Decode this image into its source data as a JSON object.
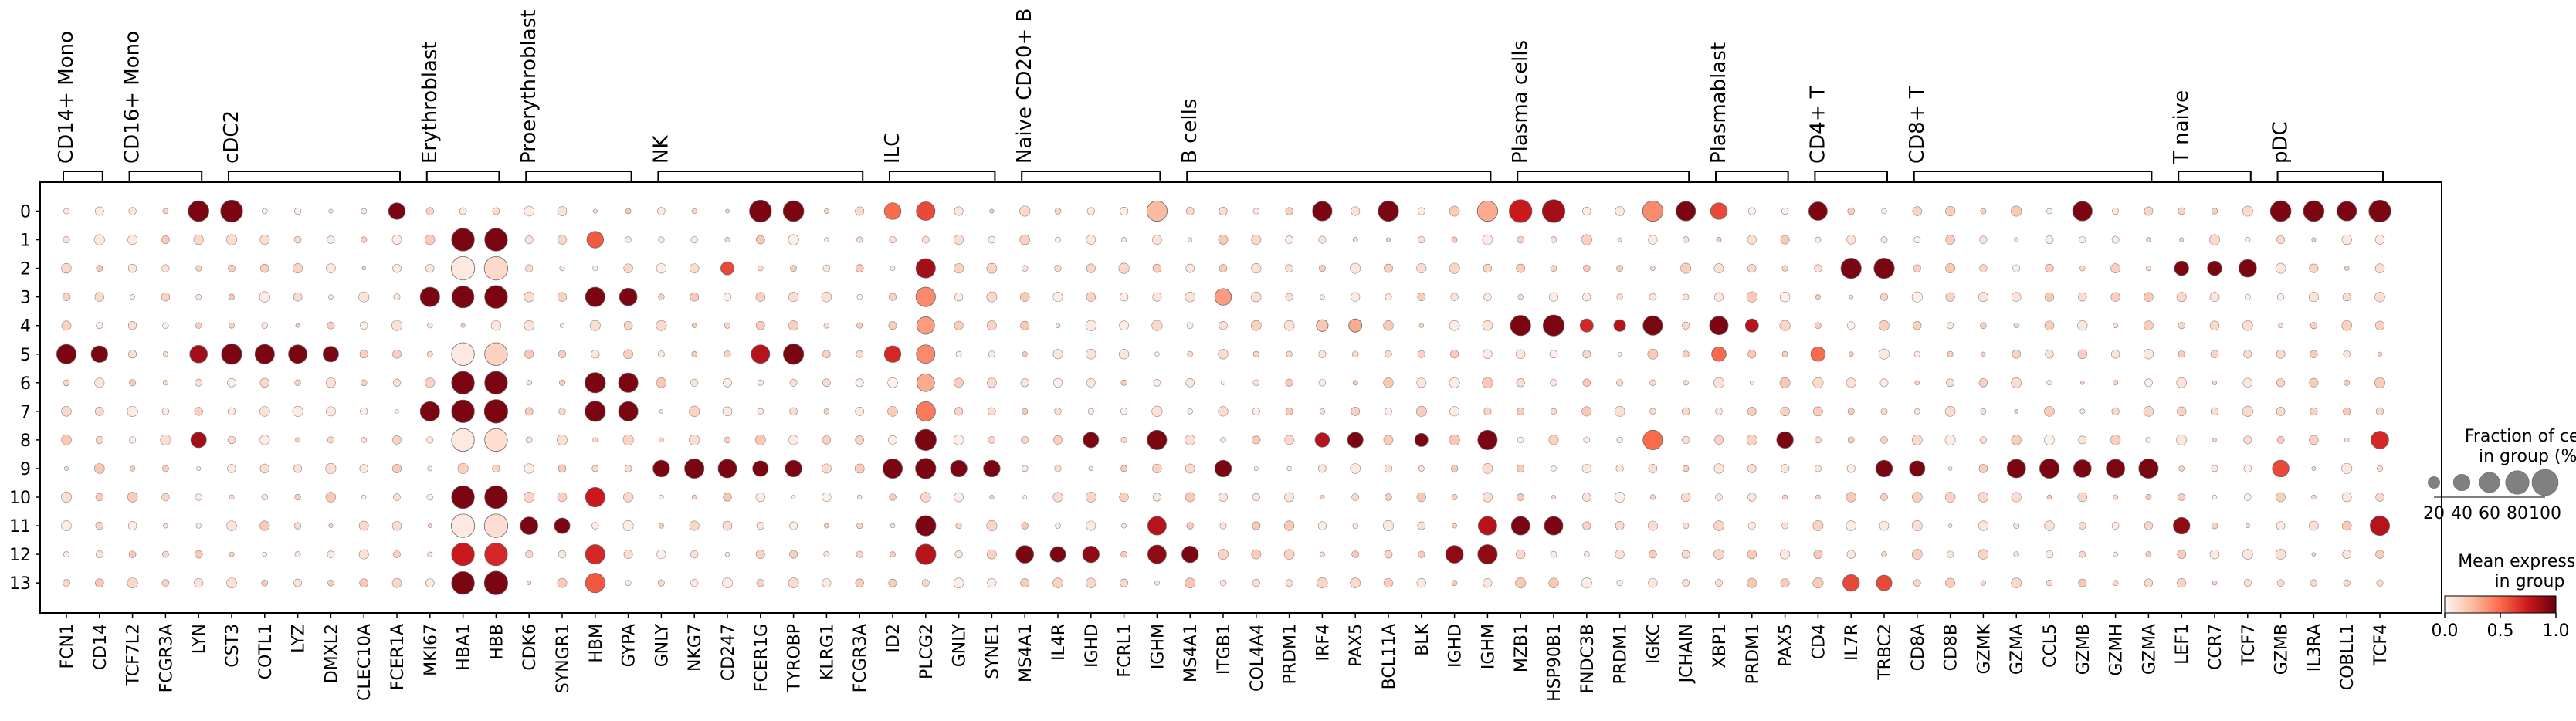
{
  "chart_data": {
    "type": "dotplot",
    "rows": [
      "0",
      "1",
      "2",
      "3",
      "4",
      "5",
      "6",
      "7",
      "8",
      "9",
      "10",
      "11",
      "12",
      "13"
    ],
    "genes": [
      "FCN1",
      "CD14",
      "TCF7L2",
      "FCGR3A",
      "LYN",
      "CST3",
      "COTL1",
      "LYZ",
      "DMXL2",
      "CLEC10A",
      "FCER1A",
      "MKI67",
      "HBA1",
      "HBB",
      "CDK6",
      "SYNGR1",
      "HBM",
      "GYPA",
      "GNLY",
      "NKG7",
      "CD247",
      "FCER1G",
      "TYROBP",
      "KLRG1",
      "FCGR3A",
      "ID2",
      "PLCG2",
      "GNLY",
      "SYNE1",
      "MS4A1",
      "IL4R",
      "IGHD",
      "FCRL1",
      "IGHM",
      "MS4A1",
      "ITGB1",
      "COL4A4",
      "PRDM1",
      "IRF4",
      "PAX5",
      "BCL11A",
      "BLK",
      "IGHD",
      "IGHM",
      "MZB1",
      "HSP90B1",
      "FNDC3B",
      "PRDM1",
      "IGKC",
      "JCHAIN",
      "XBP1",
      "PRDM1",
      "PAX5",
      "CD4",
      "IL7R",
      "TRBC2",
      "CD8A",
      "CD8B",
      "GZMK",
      "GZMA",
      "CCL5",
      "GZMB",
      "GZMH",
      "GZMA",
      "LEF1",
      "CCR7",
      "TCF7",
      "GZMB",
      "IL3RA",
      "COBLL1",
      "TCF4"
    ],
    "groups": [
      {
        "label": "CD14+ Mono",
        "start": 0,
        "end": 1
      },
      {
        "label": "CD16+ Mono",
        "start": 2,
        "end": 4
      },
      {
        "label": "cDC2",
        "start": 5,
        "end": 10
      },
      {
        "label": "Erythroblast",
        "start": 11,
        "end": 13
      },
      {
        "label": "Proerythroblast",
        "start": 14,
        "end": 17
      },
      {
        "label": "NK",
        "start": 18,
        "end": 24
      },
      {
        "label": "ILC",
        "start": 25,
        "end": 28
      },
      {
        "label": "Naive CD20+ B",
        "start": 29,
        "end": 33
      },
      {
        "label": "B cells",
        "start": 34,
        "end": 43
      },
      {
        "label": "Plasma cells",
        "start": 44,
        "end": 49
      },
      {
        "label": "Plasmablast",
        "start": 50,
        "end": 52
      },
      {
        "label": "CD4+ T",
        "start": 53,
        "end": 55
      },
      {
        "label": "CD8+ T",
        "start": 56,
        "end": 63
      },
      {
        "label": "T naive",
        "start": 64,
        "end": 66
      },
      {
        "label": "pDC",
        "start": 67,
        "end": 70
      }
    ],
    "dots": [
      [
        0,
        4,
        62,
        0.95
      ],
      [
        0,
        5,
        70,
        0.95
      ],
      [
        0,
        10,
        40,
        0.95
      ],
      [
        0,
        21,
        70,
        0.95
      ],
      [
        0,
        22,
        62,
        0.95
      ],
      [
        0,
        25,
        40,
        0.5
      ],
      [
        0,
        26,
        50,
        0.6
      ],
      [
        0,
        33,
        60,
        0.25
      ],
      [
        0,
        38,
        55,
        0.95
      ],
      [
        0,
        40,
        60,
        0.95
      ],
      [
        0,
        43,
        60,
        0.3
      ],
      [
        0,
        44,
        75,
        0.75
      ],
      [
        0,
        45,
        75,
        0.85
      ],
      [
        0,
        48,
        60,
        0.4
      ],
      [
        0,
        49,
        55,
        0.95
      ],
      [
        0,
        50,
        40,
        0.6
      ],
      [
        0,
        53,
        50,
        0.95
      ],
      [
        0,
        61,
        55,
        0.95
      ],
      [
        0,
        67,
        62,
        0.95
      ],
      [
        0,
        68,
        62,
        0.95
      ],
      [
        0,
        69,
        55,
        0.95
      ],
      [
        0,
        70,
        70,
        0.95
      ],
      [
        1,
        12,
        75,
        0.95
      ],
      [
        1,
        13,
        75,
        0.95
      ],
      [
        1,
        16,
        40,
        0.55
      ],
      [
        2,
        12,
        80,
        0.05
      ],
      [
        2,
        13,
        80,
        0.12
      ],
      [
        2,
        20,
        25,
        0.6
      ],
      [
        2,
        26,
        55,
        0.85
      ],
      [
        2,
        54,
        60,
        0.95
      ],
      [
        2,
        55,
        60,
        0.95
      ],
      [
        2,
        64,
        30,
        0.95
      ],
      [
        2,
        65,
        30,
        0.95
      ],
      [
        2,
        66,
        45,
        0.95
      ],
      [
        3,
        11,
        55,
        0.95
      ],
      [
        3,
        12,
        70,
        0.95
      ],
      [
        3,
        13,
        75,
        0.95
      ],
      [
        3,
        16,
        55,
        0.95
      ],
      [
        3,
        17,
        45,
        0.95
      ],
      [
        3,
        26,
        55,
        0.4
      ],
      [
        3,
        35,
        40,
        0.35
      ],
      [
        4,
        26,
        45,
        0.35
      ],
      [
        4,
        38,
        20,
        0.2
      ],
      [
        4,
        39,
        25,
        0.3
      ],
      [
        4,
        44,
        60,
        0.95
      ],
      [
        4,
        45,
        65,
        0.95
      ],
      [
        4,
        46,
        25,
        0.7
      ],
      [
        4,
        47,
        20,
        0.8
      ],
      [
        4,
        48,
        55,
        0.95
      ],
      [
        4,
        50,
        50,
        0.95
      ],
      [
        4,
        51,
        25,
        0.8
      ],
      [
        5,
        0,
        55,
        0.95
      ],
      [
        5,
        1,
        40,
        0.95
      ],
      [
        5,
        4,
        45,
        0.85
      ],
      [
        5,
        5,
        60,
        0.95
      ],
      [
        5,
        6,
        55,
        0.95
      ],
      [
        5,
        7,
        50,
        0.95
      ],
      [
        5,
        8,
        35,
        0.95
      ],
      [
        5,
        12,
        75,
        0.05
      ],
      [
        5,
        13,
        75,
        0.15
      ],
      [
        5,
        21,
        50,
        0.8
      ],
      [
        5,
        22,
        60,
        0.95
      ],
      [
        5,
        25,
        40,
        0.7
      ],
      [
        5,
        26,
        50,
        0.4
      ],
      [
        5,
        50,
        30,
        0.5
      ],
      [
        5,
        53,
        30,
        0.5
      ],
      [
        6,
        12,
        75,
        0.95
      ],
      [
        6,
        13,
        75,
        0.95
      ],
      [
        6,
        16,
        60,
        0.95
      ],
      [
        6,
        17,
        55,
        0.95
      ],
      [
        6,
        26,
        45,
        0.3
      ],
      [
        7,
        11,
        55,
        0.95
      ],
      [
        7,
        12,
        75,
        0.95
      ],
      [
        7,
        13,
        80,
        0.95
      ],
      [
        7,
        16,
        60,
        0.95
      ],
      [
        7,
        17,
        55,
        0.95
      ],
      [
        7,
        26,
        55,
        0.45
      ],
      [
        8,
        4,
        35,
        0.85
      ],
      [
        8,
        12,
        75,
        0.05
      ],
      [
        8,
        13,
        75,
        0.1
      ],
      [
        8,
        26,
        65,
        0.95
      ],
      [
        8,
        31,
        35,
        0.95
      ],
      [
        8,
        33,
        55,
        0.95
      ],
      [
        8,
        38,
        30,
        0.8
      ],
      [
        8,
        39,
        35,
        0.95
      ],
      [
        8,
        41,
        25,
        0.95
      ],
      [
        8,
        43,
        55,
        0.95
      ],
      [
        8,
        48,
        55,
        0.5
      ],
      [
        8,
        52,
        40,
        0.95
      ],
      [
        8,
        70,
        45,
        0.7
      ],
      [
        9,
        18,
        40,
        0.95
      ],
      [
        9,
        19,
        55,
        0.95
      ],
      [
        9,
        20,
        50,
        0.95
      ],
      [
        9,
        21,
        35,
        0.95
      ],
      [
        9,
        22,
        40,
        0.95
      ],
      [
        9,
        25,
        55,
        0.95
      ],
      [
        9,
        26,
        60,
        0.95
      ],
      [
        9,
        27,
        40,
        0.95
      ],
      [
        9,
        28,
        40,
        0.95
      ],
      [
        9,
        35,
        40,
        0.95
      ],
      [
        9,
        55,
        40,
        0.95
      ],
      [
        9,
        56,
        35,
        0.95
      ],
      [
        9,
        59,
        50,
        0.95
      ],
      [
        9,
        60,
        55,
        0.95
      ],
      [
        9,
        61,
        45,
        0.95
      ],
      [
        9,
        62,
        50,
        0.95
      ],
      [
        9,
        63,
        55,
        0.95
      ],
      [
        9,
        67,
        40,
        0.6
      ],
      [
        10,
        12,
        75,
        0.95
      ],
      [
        10,
        13,
        75,
        0.95
      ],
      [
        10,
        16,
        55,
        0.75
      ],
      [
        11,
        12,
        80,
        0.05
      ],
      [
        11,
        13,
        80,
        0.1
      ],
      [
        11,
        14,
        45,
        0.95
      ],
      [
        11,
        15,
        35,
        0.95
      ],
      [
        11,
        26,
        60,
        0.95
      ],
      [
        11,
        33,
        50,
        0.8
      ],
      [
        11,
        43,
        50,
        0.8
      ],
      [
        11,
        44,
        50,
        0.95
      ],
      [
        11,
        45,
        50,
        0.95
      ],
      [
        11,
        64,
        40,
        0.9
      ],
      [
        11,
        70,
        55,
        0.8
      ],
      [
        12,
        12,
        75,
        0.75
      ],
      [
        12,
        13,
        75,
        0.7
      ],
      [
        12,
        16,
        55,
        0.7
      ],
      [
        12,
        26,
        60,
        0.8
      ],
      [
        12,
        29,
        45,
        0.95
      ],
      [
        12,
        30,
        35,
        0.95
      ],
      [
        12,
        31,
        40,
        0.9
      ],
      [
        12,
        33,
        50,
        0.9
      ],
      [
        12,
        34,
        40,
        0.95
      ],
      [
        12,
        42,
        45,
        0.9
      ],
      [
        12,
        43,
        55,
        0.9
      ],
      [
        13,
        12,
        75,
        0.95
      ],
      [
        13,
        13,
        80,
        0.95
      ],
      [
        13,
        16,
        55,
        0.55
      ],
      [
        13,
        54,
        40,
        0.6
      ],
      [
        13,
        55,
        35,
        0.6
      ]
    ],
    "size_legend": {
      "title_line1": "Fraction of cells",
      "title_line2": "in group (%)",
      "values": [
        "20",
        "40",
        "60",
        "80",
        "100"
      ]
    },
    "color_legend": {
      "title_line1": "Mean expression",
      "title_line2": "in group",
      "ticks": [
        "0.0",
        "0.5",
        "1.0"
      ]
    },
    "colormap": [
      "#fff5f0",
      "#fcbba1",
      "#fb6a4a",
      "#cb181d",
      "#67000d"
    ]
  }
}
